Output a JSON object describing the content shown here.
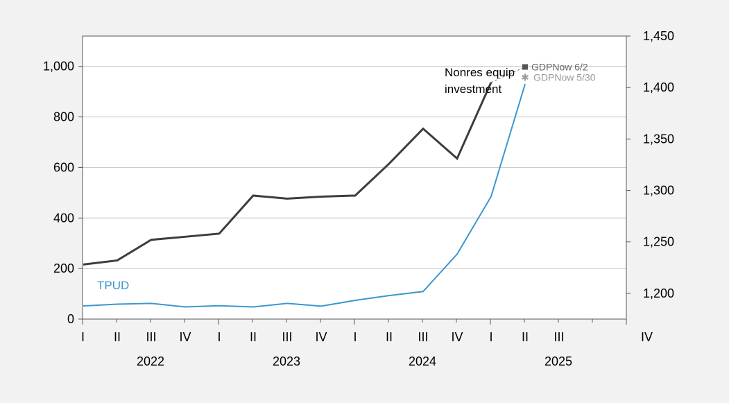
{
  "chart_data": {
    "type": "line",
    "title": "",
    "xlabel": "",
    "ylabel": "",
    "grid": true,
    "x": [
      "2022Q1",
      "2022Q2",
      "2022Q3",
      "2022Q4",
      "2023Q1",
      "2023Q2",
      "2023Q3",
      "2023Q4",
      "2024Q1",
      "2024Q2",
      "2024Q3",
      "2024Q4",
      "2025Q1",
      "2025Q2",
      "2025Q3",
      "2025Q4"
    ],
    "quarter_labels": [
      "I",
      "II",
      "III",
      "IV",
      "I",
      "II",
      "III",
      "IV",
      "I",
      "II",
      "III",
      "IV",
      "I",
      "II",
      "III",
      "IV"
    ],
    "year_labels": [
      "2022",
      "2023",
      "2024",
      "2025"
    ],
    "y_left": {
      "ylim": [
        0,
        1120
      ],
      "ticks": [
        0,
        200,
        400,
        600,
        800,
        1000
      ],
      "tick_labels": [
        "0",
        "200",
        "400",
        "600",
        "800",
        "1,000"
      ]
    },
    "y_right": {
      "ylim": [
        1175,
        1450
      ],
      "ticks": [
        1200,
        1250,
        1300,
        1350,
        1400,
        1450
      ],
      "tick_labels": [
        "1,200",
        "1,250",
        "1,300",
        "1,350",
        "1,400",
        "1,450"
      ]
    },
    "series": [
      {
        "name": "TPUD",
        "axis": "left",
        "color": "#3a97cf",
        "values": [
          52,
          59,
          62,
          48,
          53,
          48,
          62,
          51,
          74,
          93,
          109,
          257,
          485,
          930,
          null,
          null
        ]
      },
      {
        "name": "Nonres equip investment",
        "axis": "right",
        "color": "#3d3d3d",
        "values": [
          1228,
          1232,
          1252,
          1255,
          1258,
          1295,
          1292,
          1294,
          1295,
          1326,
          1360,
          1331,
          1405,
          null,
          null,
          null
        ]
      }
    ],
    "markers": [
      {
        "name": "GDPNow 6/2",
        "axis": "right",
        "x_index": 13,
        "value": 1420,
        "color": "#555555",
        "shape": "square"
      },
      {
        "name": "GDPNow 5/30",
        "axis": "right",
        "x_index": 13,
        "value": 1410,
        "color": "#9a9a9a",
        "shape": "star"
      }
    ],
    "annotations": [
      {
        "text": "Nonres equip",
        "color": "#000000"
      },
      {
        "text": "investment",
        "color": "#000000"
      },
      {
        "text": "TPUD",
        "color": "#3a97cf"
      }
    ]
  }
}
